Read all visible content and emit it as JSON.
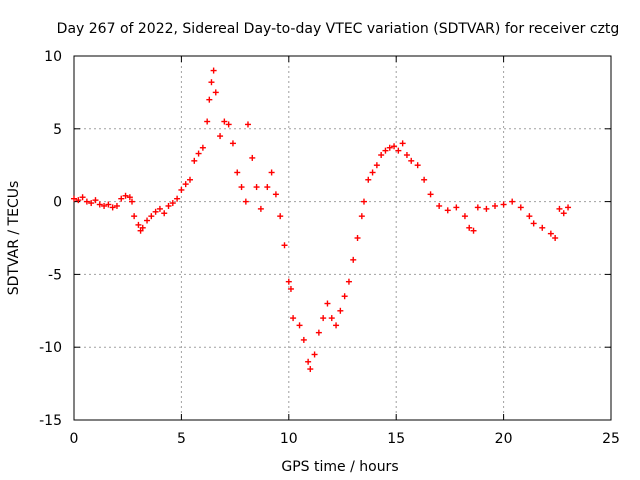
{
  "chart_data": {
    "type": "scatter",
    "title": "Day 267 of 2022, Sidereal Day-to-day VTEC variation (SDTVAR) for receiver cztg",
    "xlabel": "GPS time / hours",
    "ylabel": "SDTVAR / TECUs",
    "xlim": [
      0,
      25
    ],
    "ylim": [
      -15,
      10
    ],
    "xticks": [
      0,
      5,
      10,
      15,
      20,
      25
    ],
    "yticks": [
      -15,
      -10,
      -5,
      0,
      5,
      10
    ],
    "grid": true,
    "marker": "+",
    "color": "#ff0000",
    "series": [
      {
        "name": "SDTVAR",
        "points": [
          [
            0.0,
            0.2
          ],
          [
            0.2,
            0.1
          ],
          [
            0.4,
            0.3
          ],
          [
            0.6,
            0.0
          ],
          [
            0.8,
            -0.1
          ],
          [
            1.0,
            0.1
          ],
          [
            1.2,
            -0.2
          ],
          [
            1.4,
            -0.3
          ],
          [
            1.6,
            -0.2
          ],
          [
            1.8,
            -0.4
          ],
          [
            2.0,
            -0.3
          ],
          [
            2.2,
            0.2
          ],
          [
            2.4,
            0.4
          ],
          [
            2.6,
            0.3
          ],
          [
            2.7,
            0.0
          ],
          [
            2.8,
            -1.0
          ],
          [
            3.0,
            -1.6
          ],
          [
            3.1,
            -2.0
          ],
          [
            3.2,
            -1.8
          ],
          [
            3.4,
            -1.3
          ],
          [
            3.6,
            -1.0
          ],
          [
            3.8,
            -0.7
          ],
          [
            4.0,
            -0.5
          ],
          [
            4.2,
            -0.8
          ],
          [
            4.4,
            -0.3
          ],
          [
            4.6,
            -0.1
          ],
          [
            4.8,
            0.2
          ],
          [
            5.0,
            0.8
          ],
          [
            5.2,
            1.2
          ],
          [
            5.4,
            1.5
          ],
          [
            5.6,
            2.8
          ],
          [
            5.8,
            3.3
          ],
          [
            6.0,
            3.7
          ],
          [
            6.2,
            5.5
          ],
          [
            6.3,
            7.0
          ],
          [
            6.4,
            8.2
          ],
          [
            6.5,
            9.0
          ],
          [
            6.6,
            7.5
          ],
          [
            6.8,
            4.5
          ],
          [
            7.0,
            5.5
          ],
          [
            7.2,
            5.3
          ],
          [
            7.4,
            4.0
          ],
          [
            7.6,
            2.0
          ],
          [
            7.8,
            1.0
          ],
          [
            8.0,
            0.0
          ],
          [
            8.1,
            5.3
          ],
          [
            8.3,
            3.0
          ],
          [
            8.5,
            1.0
          ],
          [
            8.7,
            -0.5
          ],
          [
            9.0,
            1.0
          ],
          [
            9.2,
            2.0
          ],
          [
            9.4,
            0.5
          ],
          [
            9.6,
            -1.0
          ],
          [
            9.8,
            -3.0
          ],
          [
            10.0,
            -5.5
          ],
          [
            10.1,
            -6.0
          ],
          [
            10.2,
            -8.0
          ],
          [
            10.5,
            -8.5
          ],
          [
            10.7,
            -9.5
          ],
          [
            10.9,
            -11.0
          ],
          [
            11.0,
            -11.5
          ],
          [
            11.2,
            -10.5
          ],
          [
            11.4,
            -9.0
          ],
          [
            11.6,
            -8.0
          ],
          [
            11.8,
            -7.0
          ],
          [
            12.0,
            -8.0
          ],
          [
            12.2,
            -8.5
          ],
          [
            12.4,
            -7.5
          ],
          [
            12.6,
            -6.5
          ],
          [
            12.8,
            -5.5
          ],
          [
            13.0,
            -4.0
          ],
          [
            13.2,
            -2.5
          ],
          [
            13.4,
            -1.0
          ],
          [
            13.5,
            0.0
          ],
          [
            13.7,
            1.5
          ],
          [
            13.9,
            2.0
          ],
          [
            14.1,
            2.5
          ],
          [
            14.3,
            3.2
          ],
          [
            14.5,
            3.5
          ],
          [
            14.7,
            3.7
          ],
          [
            14.9,
            3.8
          ],
          [
            15.1,
            3.5
          ],
          [
            15.3,
            4.0
          ],
          [
            15.5,
            3.2
          ],
          [
            15.7,
            2.8
          ],
          [
            16.0,
            2.5
          ],
          [
            16.3,
            1.5
          ],
          [
            16.6,
            0.5
          ],
          [
            17.0,
            -0.3
          ],
          [
            17.4,
            -0.6
          ],
          [
            17.8,
            -0.4
          ],
          [
            18.2,
            -1.0
          ],
          [
            18.4,
            -1.8
          ],
          [
            18.6,
            -2.0
          ],
          [
            18.8,
            -0.4
          ],
          [
            19.2,
            -0.5
          ],
          [
            19.6,
            -0.3
          ],
          [
            20.0,
            -0.2
          ],
          [
            20.4,
            0.0
          ],
          [
            20.8,
            -0.4
          ],
          [
            21.2,
            -1.0
          ],
          [
            21.4,
            -1.5
          ],
          [
            21.8,
            -1.8
          ],
          [
            22.2,
            -2.2
          ],
          [
            22.4,
            -2.5
          ],
          [
            22.6,
            -0.5
          ],
          [
            22.8,
            -0.8
          ],
          [
            23.0,
            -0.4
          ]
        ]
      }
    ]
  }
}
